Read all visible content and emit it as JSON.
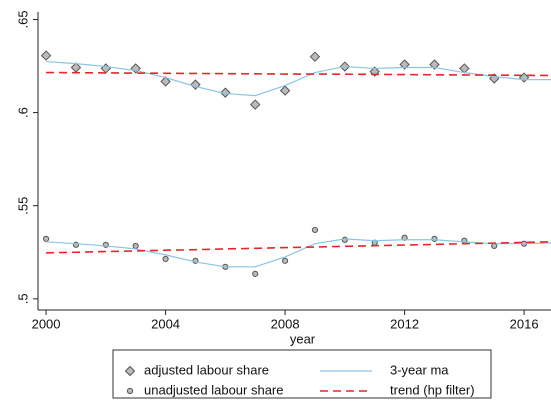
{
  "chart_data": {
    "type": "line",
    "xlabel": "year",
    "x": [
      2000,
      2001,
      2002,
      2003,
      2004,
      2005,
      2006,
      2007,
      2008,
      2009,
      2010,
      2011,
      2012,
      2013,
      2014,
      2015,
      2016,
      2017
    ],
    "xlim": [
      1999.73,
      2016.9
    ],
    "xticks": [
      2000,
      2004,
      2008,
      2012,
      2016
    ],
    "ylim": [
      0.494,
      0.654
    ],
    "yticks": [
      {
        "value": 0.5,
        "label": ".5"
      },
      {
        "value": 0.55,
        "label": ".55"
      },
      {
        "value": 0.6,
        "label": ".6"
      },
      {
        "value": 0.65,
        "label": ".65"
      }
    ],
    "series": [
      {
        "name": "adjusted labour share",
        "marker": "diamond",
        "color": "#555555",
        "values": [
          0.6306,
          0.6242,
          0.6237,
          0.6237,
          0.6167,
          0.615,
          0.6107,
          0.6043,
          0.6118,
          0.63,
          0.6247,
          0.622,
          0.6258,
          0.6258,
          0.6237,
          0.6183,
          0.6188,
          null
        ]
      },
      {
        "name": "unadjusted labour share",
        "marker": "circle",
        "color": "#555555",
        "values": [
          0.5322,
          0.529,
          0.529,
          0.5284,
          0.5214,
          0.5204,
          0.5172,
          0.5134,
          0.5204,
          0.537,
          0.5317,
          0.5301,
          0.5328,
          0.5322,
          0.5312,
          0.5284,
          0.5296,
          null
        ]
      },
      {
        "name": "3-year ma",
        "line": "solid",
        "color": "#8cc4e6",
        "values": [
          [
            0.6274,
            0.6263,
            0.6247,
            0.6226,
            0.6188,
            0.614,
            0.6102,
            0.6091,
            0.6145,
            0.6215,
            0.6247,
            0.6237,
            0.6242,
            0.6242,
            0.6215,
            0.6193,
            0.6177,
            0.6177
          ],
          [
            0.5306,
            0.5296,
            0.5284,
            0.5268,
            0.5236,
            0.5198,
            0.5172,
            0.5172,
            0.5225,
            0.5296,
            0.5322,
            0.5312,
            0.5317,
            0.5317,
            0.5306,
            0.5296,
            0.5296,
            0.5301
          ]
        ]
      },
      {
        "name": "trend (hp filter)",
        "line": "dashed",
        "color": "#e8262a",
        "values": [
          [
            0.6215,
            0.6214,
            0.6213,
            0.6212,
            0.6211,
            0.621,
            0.6209,
            0.6208,
            0.6207,
            0.6207,
            0.6206,
            0.6205,
            0.6204,
            0.6203,
            0.6202,
            0.6201,
            0.62,
            0.6199
          ],
          [
            0.5247,
            0.525,
            0.5254,
            0.5257,
            0.5261,
            0.5264,
            0.5268,
            0.5271,
            0.5275,
            0.5278,
            0.5282,
            0.5285,
            0.5289,
            0.5292,
            0.5296,
            0.5299,
            0.5303,
            0.5306
          ]
        ]
      }
    ]
  }
}
